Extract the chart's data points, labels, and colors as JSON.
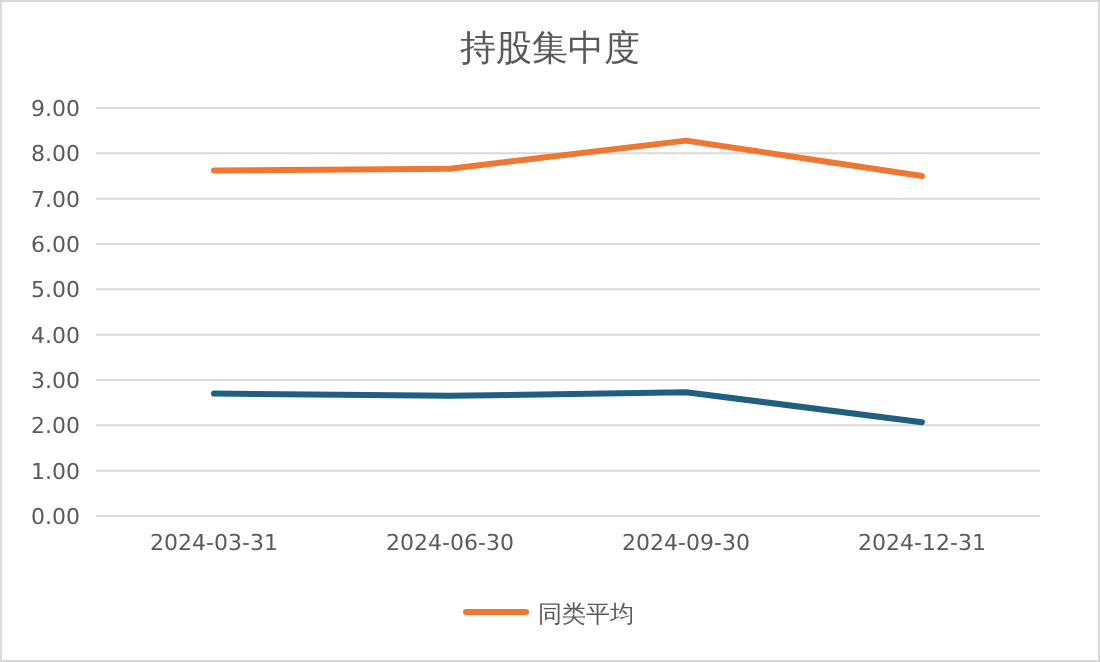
{
  "chart_data": {
    "type": "line",
    "title": "持股集中度",
    "categories": [
      "2024-03-31",
      "2024-06-30",
      "2024-09-30",
      "2024-12-31"
    ],
    "series": [
      {
        "color": "#1f5f7f",
        "values": [
          2.7,
          2.65,
          2.73,
          2.07
        ]
      },
      {
        "name": "同类平均",
        "color": "#ee7733",
        "values": [
          7.62,
          7.66,
          8.28,
          7.5
        ]
      }
    ],
    "ylim": [
      0,
      9
    ],
    "yticks": [
      {
        "value": 0,
        "label": "0.00"
      },
      {
        "value": 1,
        "label": "1.00"
      },
      {
        "value": 2,
        "label": "2.00"
      },
      {
        "value": 3,
        "label": "3.00"
      },
      {
        "value": 4,
        "label": "4.00"
      },
      {
        "value": 5,
        "label": "5.00"
      },
      {
        "value": 6,
        "label": "6.00"
      },
      {
        "value": 7,
        "label": "7.00"
      },
      {
        "value": 8,
        "label": "8.00"
      },
      {
        "value": 9,
        "label": "9.00"
      }
    ],
    "grid": "y",
    "legend": "bottom",
    "marker": "none",
    "line_style": "solid"
  }
}
